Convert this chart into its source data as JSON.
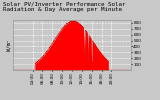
{
  "title": "Solar PV/Inverter Performance Solar Radiation & Day Average per Minute",
  "ylabel_left": "W/m²",
  "ylim": [
    0,
    850
  ],
  "yticks": [
    100,
    200,
    300,
    400,
    500,
    600,
    700,
    800
  ],
  "xlim": [
    0,
    1440
  ],
  "xtick_labels": [
    "04:00",
    "06:00",
    "08:00",
    "10:00",
    "12:00",
    "14:00",
    "16:00",
    "18:00",
    "20:00"
  ],
  "xtick_positions": [
    240,
    360,
    480,
    600,
    720,
    840,
    960,
    1080,
    1200
  ],
  "fill_color": "#ff0000",
  "line_color": "#dd0000",
  "bg_color": "#c8c8c8",
  "plot_bg_color": "#c8c8c8",
  "grid_color": "#ffffff",
  "title_fontsize": 4.2,
  "tick_fontsize": 3.0,
  "ylabel_fontsize": 3.5,
  "peak_time": 735,
  "peak_value": 830,
  "sunrise": 270,
  "sunset": 1160
}
